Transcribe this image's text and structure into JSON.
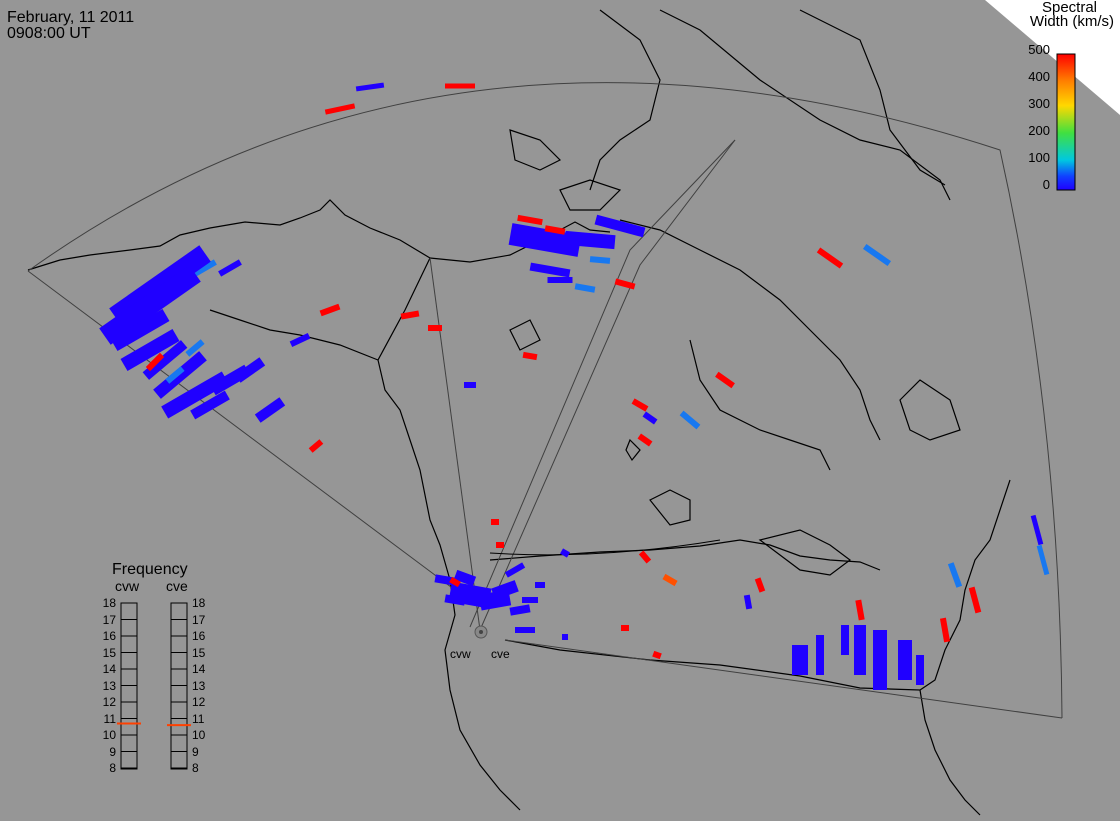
{
  "header": {
    "date": "February, 11 2011",
    "time": "0908:00 UT"
  },
  "colorbar": {
    "title_line1": "Spectral",
    "title_line2": "Width (km/s)",
    "ticks": [
      "500",
      "400",
      "300",
      "200",
      "100",
      "0"
    ],
    "colors": [
      "#ff0000",
      "#ff8000",
      "#ffd800",
      "#40e040",
      "#00c8e0",
      "#1040ff",
      "#2000ff"
    ]
  },
  "frequency": {
    "title": "Frequency",
    "radars": [
      "cvw",
      "cve"
    ],
    "scale": [
      "18",
      "17",
      "16",
      "15",
      "14",
      "13",
      "12",
      "11",
      "10",
      "9",
      "8"
    ],
    "cvw_value_mhz": 10.7,
    "cve_value_mhz": 10.6,
    "marker_color": "#ff4000"
  },
  "sites": [
    "cvw",
    "cve"
  ],
  "map": {
    "background": "#969696",
    "fov_color": "#404040",
    "coast_color": "#000000"
  }
}
